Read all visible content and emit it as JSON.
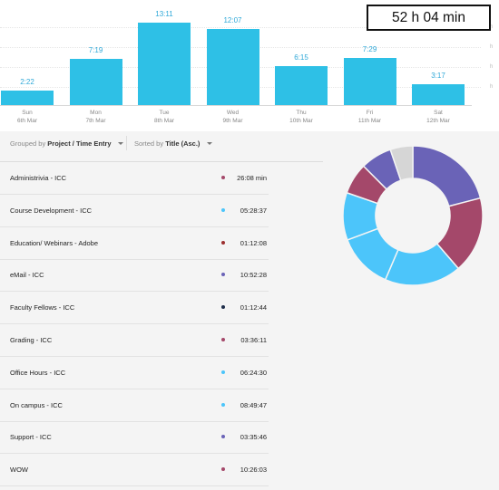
{
  "total": "52 h 04 min",
  "chart_data": {
    "type": "bar",
    "categories": [
      "Sun 6th Mar",
      "Mon 7th Mar",
      "Tue 8th Mar",
      "Wed 9th Mar",
      "Thu 10th Mar",
      "Fri 11th Mar",
      "Sat 12th Mar"
    ],
    "days": [
      {
        "day": "Sun",
        "date": "6th Mar",
        "label": "2:22",
        "hours": 2.367
      },
      {
        "day": "Mon",
        "date": "7th Mar",
        "label": "7:19",
        "hours": 7.317
      },
      {
        "day": "Tue",
        "date": "8th Mar",
        "label": "13:11",
        "hours": 13.183
      },
      {
        "day": "Wed",
        "date": "9th Mar",
        "label": "12:07",
        "hours": 12.117
      },
      {
        "day": "Thu",
        "date": "10th Mar",
        "label": "6:15",
        "hours": 6.25
      },
      {
        "day": "Fri",
        "date": "11th Mar",
        "label": "7:29",
        "hours": 7.483
      },
      {
        "day": "Sat",
        "date": "12th Mar",
        "label": "3:17",
        "hours": 3.283
      }
    ],
    "values": [
      2.367,
      7.317,
      13.183,
      12.117,
      6.25,
      7.483,
      3.283
    ],
    "ylim": [
      0,
      14
    ],
    "right_axis_ticks": [
      "h",
      "h",
      "h",
      "h"
    ],
    "bar_color": "#2ec0e6"
  },
  "toolbar": {
    "group_prefix": "Grouped by",
    "group_value": "Project / Time Entry",
    "sort_prefix": "Sorted by",
    "sort_value": "Title (Asc.)"
  },
  "entries": [
    {
      "title": "Administrivia - ICC",
      "time": "26:08 min",
      "color": "#a4486a"
    },
    {
      "title": "Course Development - ICC",
      "time": "05:28:37",
      "color": "#4cc5fa"
    },
    {
      "title": "Education/ Webinars - Adobe",
      "time": "01:12:08",
      "color": "#9b2f2f"
    },
    {
      "title": "eMail - ICC",
      "time": "10:52:28",
      "color": "#6a63b7"
    },
    {
      "title": "Faculty Fellows - ICC",
      "time": "01:12:44",
      "color": "#1e2d4a"
    },
    {
      "title": "Grading - ICC",
      "time": "03:36:11",
      "color": "#a4486a"
    },
    {
      "title": "Office Hours - ICC",
      "time": "06:24:30",
      "color": "#4cc5fa"
    },
    {
      "title": "On campus - ICC",
      "time": "08:49:47",
      "color": "#4cc5fa"
    },
    {
      "title": "Support - ICC",
      "time": "03:35:46",
      "color": "#6a63b7"
    },
    {
      "title": "WOW",
      "time": "10:26:03",
      "color": "#a4486a"
    }
  ],
  "donut": {
    "segments": [
      {
        "value": 10.44,
        "color": "#6a63b7"
      },
      {
        "value": 8.83,
        "color": "#a4486a"
      },
      {
        "value": 8.83,
        "color": "#4cc5fa"
      },
      {
        "value": 6.41,
        "color": "#4cc5fa"
      },
      {
        "value": 5.48,
        "color": "#4cc5fa"
      },
      {
        "value": 3.6,
        "color": "#a4486a"
      },
      {
        "value": 3.6,
        "color": "#6a63b7"
      },
      {
        "value": 2.6,
        "color": "#d6d6d6"
      }
    ]
  }
}
